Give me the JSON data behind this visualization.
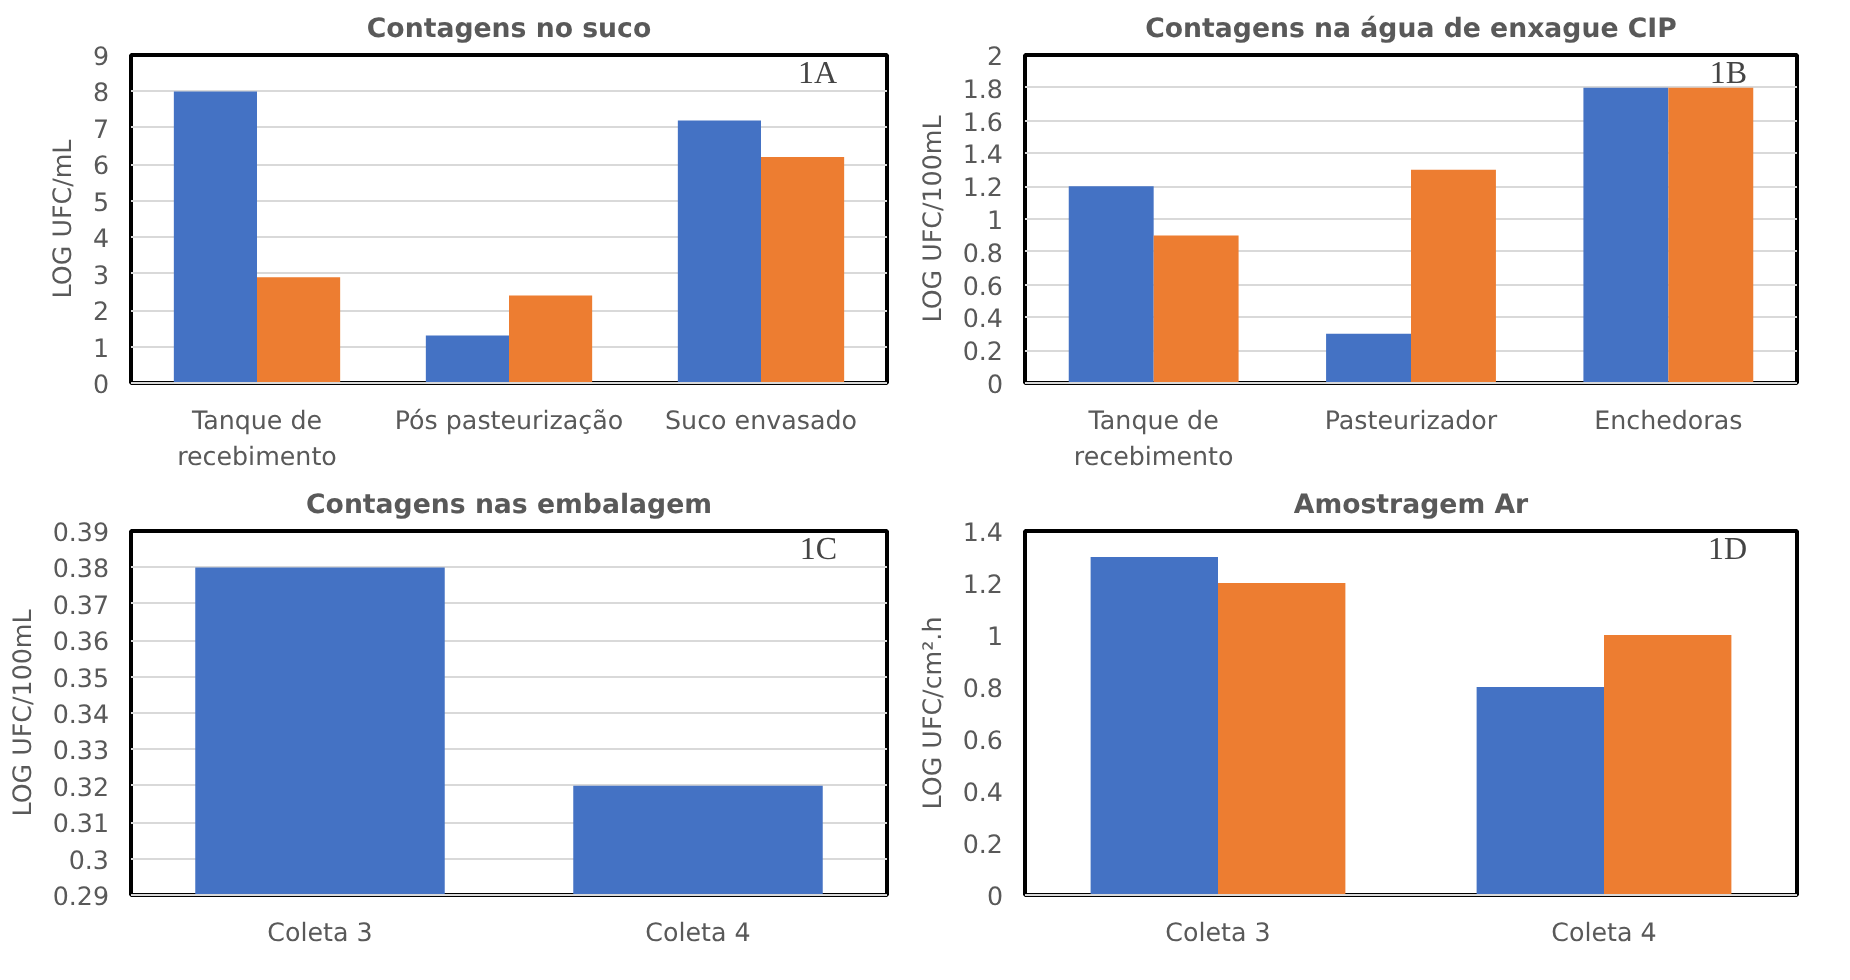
{
  "chart_data": [
    {
      "type": "bar",
      "title": "Contagens no suco",
      "ylabel": "LOG UFC/mL",
      "annotations": [
        "1A"
      ],
      "categories": [
        "Tanque de recebimento",
        "Pós pasteurização",
        "Suco envasado"
      ],
      "series": [
        {
          "color": "#4472c4",
          "values": [
            8.0,
            1.3,
            7.2
          ]
        },
        {
          "color": "#ed7d31",
          "values": [
            2.9,
            2.4,
            6.2
          ]
        }
      ],
      "ylim": [
        0,
        9
      ],
      "yticks": [
        0,
        1,
        2,
        3,
        4,
        5,
        6,
        7,
        8,
        9
      ],
      "grid": "y"
    },
    {
      "type": "bar",
      "title": "Contagens na água de enxague CIP",
      "ylabel": "LOG UFC/100mL",
      "annotations": [
        "1B"
      ],
      "categories": [
        "Tanque de recebimento",
        "Pasteurizador",
        "Enchedoras"
      ],
      "series": [
        {
          "color": "#4472c4",
          "values": [
            1.2,
            0.3,
            1.8
          ]
        },
        {
          "color": "#ed7d31",
          "values": [
            0.9,
            1.3,
            1.8
          ]
        }
      ],
      "ylim": [
        0,
        2
      ],
      "yticks": [
        0,
        0.2,
        0.4,
        0.6,
        0.8,
        1,
        1.2,
        1.4,
        1.6,
        1.8,
        2
      ],
      "grid": "y"
    },
    {
      "type": "bar",
      "title": "Contagens nas embalagem",
      "ylabel": "LOG UFC/100mL",
      "annotations": [
        "1C"
      ],
      "categories": [
        "Coleta 3",
        "Coleta 4"
      ],
      "series": [
        {
          "color": "#4472c4",
          "values": [
            0.38,
            0.32
          ]
        }
      ],
      "ylim": [
        0.29,
        0.39
      ],
      "yticks": [
        0.29,
        0.3,
        0.31,
        0.32,
        0.33,
        0.34,
        0.35,
        0.36,
        0.37,
        0.38,
        0.39
      ],
      "grid": "y"
    },
    {
      "type": "bar",
      "title": "Amostragem Ar",
      "ylabel": "LOG UFC/cm².h",
      "annotations": [
        "1D"
      ],
      "categories": [
        "Coleta 3",
        "Coleta 4"
      ],
      "series": [
        {
          "color": "#4472c4",
          "values": [
            1.3,
            0.8
          ]
        },
        {
          "color": "#ed7d31",
          "values": [
            1.2,
            1.0
          ]
        }
      ],
      "ylim": [
        0,
        1.4
      ],
      "yticks": [
        0,
        0.2,
        0.4,
        0.6,
        0.8,
        1,
        1.2,
        1.4
      ],
      "grid": false
    }
  ]
}
